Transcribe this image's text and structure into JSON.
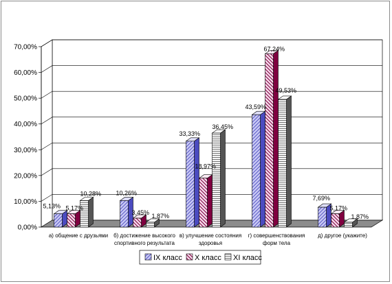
{
  "chart_data": {
    "type": "bar",
    "categories": [
      [
        "а) общение с друзьями"
      ],
      [
        "б) достижение высокого",
        "спортивного результата"
      ],
      [
        "в) улучшение состояния",
        "здоровья"
      ],
      [
        "г) совершенствования",
        "форм тела"
      ],
      [
        "д) другое (укажите)"
      ]
    ],
    "series": [
      {
        "name": "IX класс",
        "values": [
          5.13,
          10.26,
          33.33,
          43.59,
          7.69
        ],
        "labels": [
          "5,13%",
          "10,26%",
          "33,33%",
          "43,59%",
          "7,69%"
        ],
        "color": "#c8c8f4",
        "hatch": "#4b4bc0"
      },
      {
        "name": "X класс",
        "values": [
          5.17,
          3.45,
          18.97,
          67.24,
          5.17
        ],
        "labels": [
          "5,17%",
          "3,45%",
          "18,97%",
          "67,24%",
          "5,17%"
        ],
        "color": "#f6dcec",
        "hatch": "#800040"
      },
      {
        "name": "XI класс",
        "values": [
          10.28,
          1.87,
          36.45,
          49.53,
          1.87
        ],
        "labels": [
          "10,28%",
          "1,87%",
          "36,45%",
          "49,53%",
          "1,87%"
        ],
        "color": "#f2f2f2",
        "hatch": "#555555"
      }
    ],
    "yticks": [
      "0,00%",
      "10,00%",
      "20,00%",
      "30,00%",
      "40,00%",
      "50,00%",
      "60,00%",
      "70,00%"
    ],
    "ylim": [
      0,
      70
    ],
    "grid": true,
    "legend_position": "bottom"
  }
}
